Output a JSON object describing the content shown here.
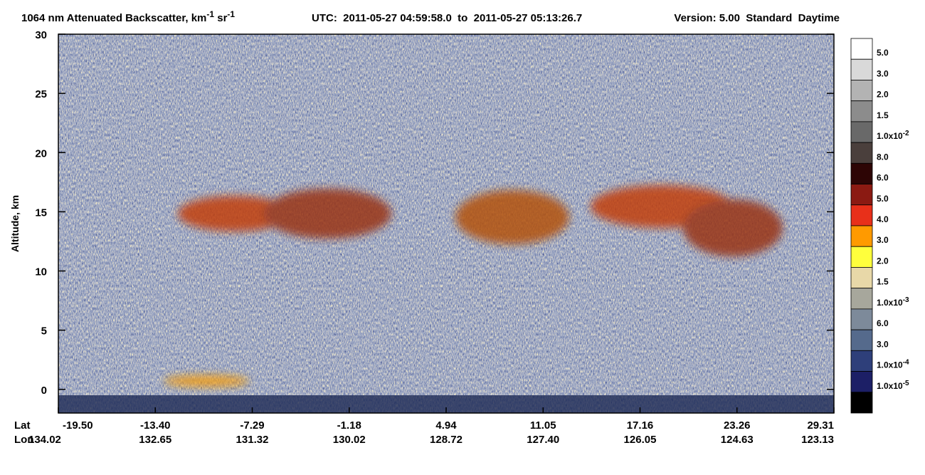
{
  "chart_data": {
    "type": "heatmap",
    "title_parts": [
      "1064 nm Attenuated Backscatter, km",
      "-1",
      " sr",
      "-1"
    ],
    "time_range": "UTC:  2011-05-27 04:59:58.0  to  2011-05-27 05:13:26.7",
    "version": "Version: 5.00  Standard  Daytime",
    "ylabel": "Altitude, km",
    "ylim": [
      -2,
      30
    ],
    "yticks": [
      0,
      5,
      10,
      15,
      20,
      25,
      30
    ],
    "lat_label": "Lat",
    "lon_label": "Lon",
    "lat": [
      "-19.50",
      "-13.40",
      "-7.29",
      "-1.18",
      "4.94",
      "11.05",
      "17.16",
      "23.26",
      "29.31"
    ],
    "lon": [
      "134.02",
      "132.65",
      "131.32",
      "130.02",
      "128.72",
      "127.40",
      "126.05",
      "124.63",
      "123.13"
    ],
    "colorbar": {
      "colors": [
        "#ffffff",
        "#d9d9d9",
        "#b3b3b3",
        "#8c8c8c",
        "#696969",
        "#4a3f3c",
        "#2d0505",
        "#8b1a12",
        "#e8301a",
        "#ff9a00",
        "#ffff3c",
        "#e8d8a8",
        "#a7a79c",
        "#7d8a9a",
        "#556a8c",
        "#2e3f7a",
        "#1c1f66",
        "#000000"
      ],
      "labels": [
        {
          "text": "5.0"
        },
        {
          "text": "3.0"
        },
        {
          "text": "2.0"
        },
        {
          "text": "1.5"
        },
        {
          "text": "1.0x10",
          "exponent": "-2"
        },
        {
          "text": "8.0"
        },
        {
          "text": "6.0"
        },
        {
          "text": "5.0"
        },
        {
          "text": "4.0"
        },
        {
          "text": "3.0"
        },
        {
          "text": "2.0"
        },
        {
          "text": "1.5"
        },
        {
          "text": "1.0x10",
          "exponent": "-3"
        },
        {
          "text": "6.0"
        },
        {
          "text": "3.0"
        },
        {
          "text": "1.0x10",
          "exponent": "-4"
        },
        {
          "text": "1.0x10",
          "exponent": "-5"
        }
      ]
    }
  }
}
